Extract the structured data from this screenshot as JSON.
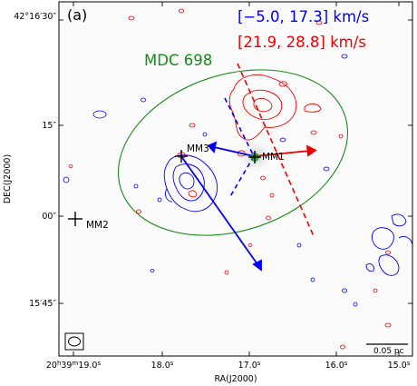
{
  "panel_label": "(a)",
  "velocity_ranges": [
    {
      "text": "[−5.0, 17.3] km/s",
      "color": "#0000ee"
    },
    {
      "text": "[21.9, 28.8] km/s",
      "color": "#ee0000"
    }
  ],
  "cloud_label": {
    "text": "MDC 698",
    "color": "#1a8a1a"
  },
  "sources": [
    "MM1",
    "MM2",
    "MM3"
  ],
  "dec_ticks": [
    "42°16′30″",
    "15″",
    "00″",
    "15′45″"
  ],
  "ra_ticks": [
    {
      "h": "20",
      "hs": "h",
      "m": "39",
      "ms": "m",
      "s": "19.0",
      "ss": "s"
    },
    {
      "s": "18.0",
      "ss": "s"
    },
    {
      "s": "17.0",
      "ss": "s"
    },
    {
      "s": "16.0",
      "ss": "s"
    },
    {
      "s": "15.0",
      "ss": "s"
    }
  ],
  "axes": {
    "xlabel": "RA(J2000)",
    "ylabel": "DEC(J2000)"
  },
  "scale_bar": {
    "label": "0.05 pc"
  },
  "colors": {
    "blue_lobe": "#0000ee",
    "red_lobe": "#ee0000",
    "ellipse": "#1a8a1a",
    "frame": "#000000"
  }
}
